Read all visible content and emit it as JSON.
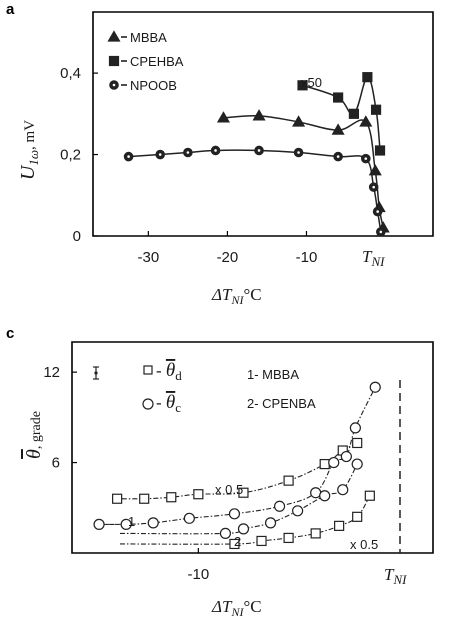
{
  "chart_data": [
    {
      "type": "line",
      "panel_label": "a",
      "title": "",
      "xlabel_main": "ΔT",
      "xlabel_sub": "NI",
      "xlabel_unit": "°C",
      "ylabel_main": "U",
      "ylabel_sub": "1ω",
      "ylabel_unit": ", mV",
      "xlim": [
        -37,
        6
      ],
      "ylim": [
        0,
        0.55
      ],
      "x_ticks": [
        -30,
        -20,
        -10
      ],
      "x_tick_labels": [
        "-30",
        "-20",
        "-10"
      ],
      "tni_label_main": "T",
      "tni_label_sub": "NI",
      "y_ticks": [
        0,
        0.2,
        0.4
      ],
      "y_tick_labels": [
        "0",
        "0,2",
        "0,4"
      ],
      "annotation": "x50",
      "series": [
        {
          "name": "MBBA",
          "marker": "triangle",
          "x": [
            -20.5,
            -16,
            -11,
            -6,
            -2.5,
            -1.3,
            -0.8,
            -0.3
          ],
          "y": [
            0.29,
            0.295,
            0.28,
            0.26,
            0.28,
            0.16,
            0.07,
            0.02
          ]
        },
        {
          "name": "CPEHBA",
          "marker": "square",
          "x": [
            -10.5,
            -6,
            -4,
            -2.3,
            -1.2,
            -0.7
          ],
          "y": [
            0.37,
            0.34,
            0.3,
            0.39,
            0.31,
            0.21
          ]
        },
        {
          "name": "NPOOB",
          "marker": "circle",
          "x": [
            -32.5,
            -28.5,
            -25,
            -21.5,
            -16,
            -11,
            -6,
            -2.5,
            -1.5,
            -1.0,
            -0.6
          ],
          "y": [
            0.195,
            0.2,
            0.205,
            0.21,
            0.21,
            0.205,
            0.195,
            0.19,
            0.12,
            0.06,
            0.01
          ]
        }
      ],
      "legend_placement": "top-left",
      "legend_entries": [
        "MBBA",
        "CPEHBA",
        "NPOOB"
      ],
      "grid": false
    },
    {
      "type": "scatter",
      "panel_label": "c",
      "title": "",
      "xlabel_main": "ΔT",
      "xlabel_sub": "NI",
      "xlabel_unit": "°C",
      "ylabel_main": "θ",
      "ylabel_unit": ", grade",
      "xlim": [
        -17,
        3
      ],
      "ylim": [
        0,
        14
      ],
      "x_ticks": [
        -10
      ],
      "x_tick_labels": [
        "-10"
      ],
      "tni_label_main": "T",
      "tni_label_sub": "NI",
      "y_ticks": [
        6,
        12
      ],
      "y_tick_labels": [
        "6",
        "12"
      ],
      "legend_symbols": [
        {
          "marker": "square",
          "label": "θ",
          "sub": "d"
        },
        {
          "marker": "circle",
          "label": "θ",
          "sub": "c"
        }
      ],
      "legend_names": [
        "1- MBBA",
        "2- CPENBA"
      ],
      "annotations": [
        "x 0.5",
        "x 0.5",
        "1",
        "2"
      ],
      "series": [
        {
          "name": "1- MBBA",
          "marker": "square",
          "x": [
            -14.5,
            -13,
            -11.5,
            -10,
            -7.5,
            -5,
            -3,
            -2,
            -1.2
          ],
          "y": [
            3.6,
            3.6,
            3.7,
            3.9,
            4.0,
            4.8,
            5.9,
            6.8,
            7.3
          ]
        },
        {
          "name": "1- MBBA",
          "marker": "circle",
          "x": [
            -15.5,
            -14,
            -12.5,
            -10.5,
            -8,
            -5.5,
            -3.5,
            -2.5,
            -1.8,
            -1.3,
            -0.2
          ],
          "y": [
            1.9,
            1.9,
            2.0,
            2.3,
            2.6,
            3.1,
            4.0,
            6.0,
            6.4,
            8.3,
            11.0
          ]
        },
        {
          "name": "2- CPENBA",
          "marker": "square",
          "x": [
            -8,
            -6.5,
            -5,
            -3.5,
            -2.2,
            -1.2,
            -0.5
          ],
          "y": [
            0.6,
            0.8,
            1.0,
            1.3,
            1.8,
            2.4,
            3.8
          ]
        },
        {
          "name": "2- CPENBA",
          "marker": "circle",
          "x": [
            -8.5,
            -7.5,
            -6,
            -4.5,
            -3,
            -2,
            -1.2
          ],
          "y": [
            1.3,
            1.6,
            2.0,
            2.8,
            3.8,
            4.2,
            5.9
          ]
        }
      ],
      "legend_placement": "top",
      "grid": false
    }
  ]
}
